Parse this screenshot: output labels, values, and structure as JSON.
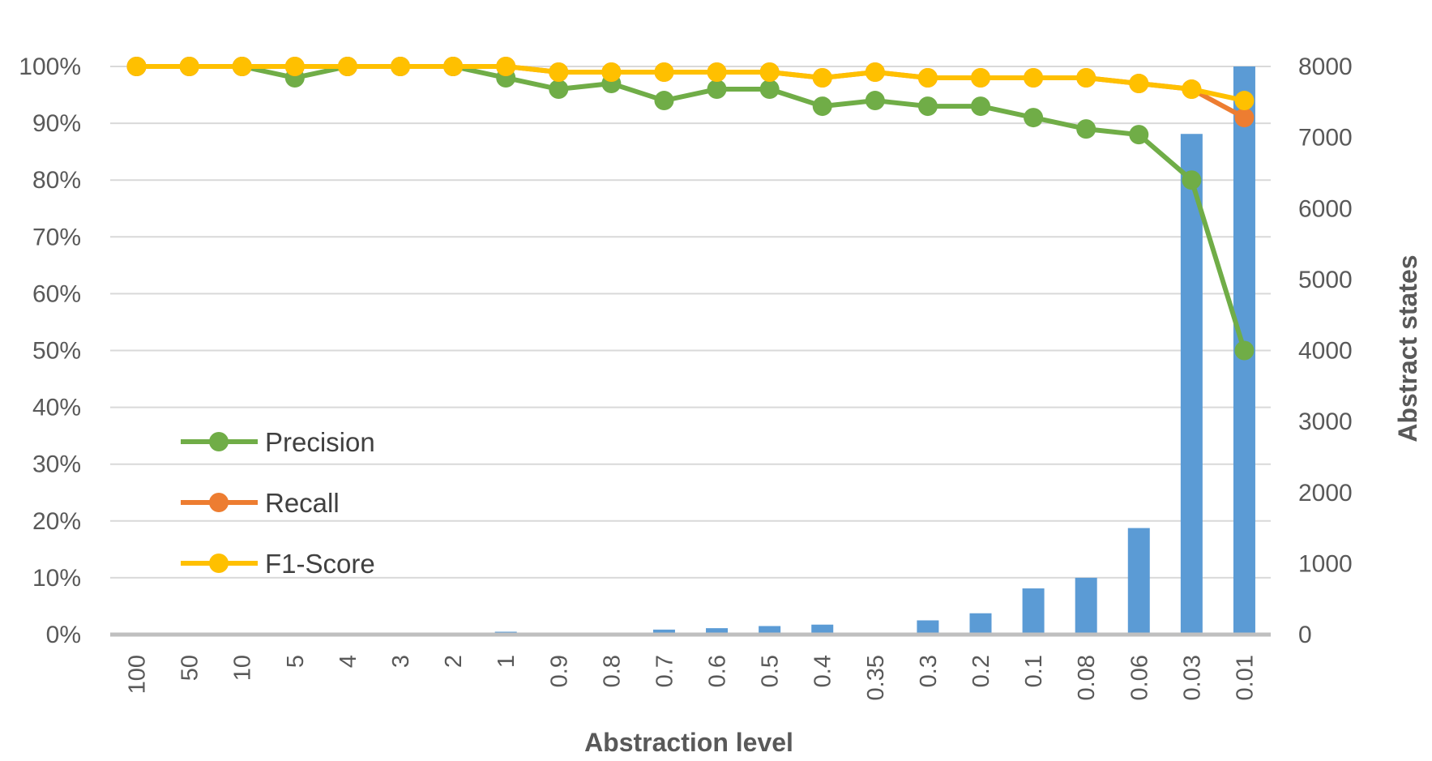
{
  "chart_data": {
    "type": "bar+line",
    "title": "",
    "xlabel": "Abstraction level",
    "ylabel_left": "",
    "ylabel_right": "Abstract states",
    "categories": [
      "100",
      "50",
      "10",
      "5",
      "4",
      "3",
      "2",
      "1",
      "0.9",
      "0.8",
      "0.7",
      "0.6",
      "0.5",
      "0.4",
      "0.35",
      "0.3",
      "0.2",
      "0.1",
      "0.08",
      "0.06",
      "0.03",
      "0.01"
    ],
    "y_left": {
      "min": 0,
      "max": 100,
      "step": 10,
      "unit": "%",
      "ticks": [
        "0%",
        "10%",
        "20%",
        "30%",
        "40%",
        "50%",
        "60%",
        "70%",
        "80%",
        "90%",
        "100%"
      ]
    },
    "y_right": {
      "min": 0,
      "max": 8000,
      "step": 1000,
      "ticks": [
        "0",
        "1000",
        "2000",
        "3000",
        "4000",
        "5000",
        "6000",
        "7000",
        "8000"
      ]
    },
    "grid": true,
    "legend_placement": "left",
    "bars": {
      "axis": "right",
      "color": "#5b9bd5",
      "values": [
        0,
        0,
        0,
        0,
        0,
        0,
        0,
        40,
        0,
        0,
        70,
        90,
        120,
        140,
        15,
        200,
        300,
        650,
        800,
        1500,
        7050,
        8000
      ]
    },
    "series": [
      {
        "name": "Precision",
        "color": "#70ad47",
        "axis": "left",
        "values": [
          100,
          100,
          100,
          98,
          100,
          100,
          100,
          98,
          96,
          97,
          94,
          96,
          96,
          93,
          94,
          93,
          93,
          91,
          89,
          88,
          80,
          50
        ]
      },
      {
        "name": "Recall",
        "color": "#ed7d31",
        "axis": "left",
        "values": [
          100,
          100,
          100,
          100,
          100,
          100,
          100,
          100,
          99,
          99,
          99,
          99,
          99,
          98,
          99,
          98,
          98,
          98,
          98,
          97,
          96,
          91
        ]
      },
      {
        "name": "F1-Score",
        "color": "#ffc000",
        "axis": "left",
        "values": [
          100,
          100,
          100,
          100,
          100,
          100,
          100,
          100,
          99,
          99,
          99,
          99,
          99,
          98,
          99,
          98,
          98,
          98,
          98,
          97,
          96,
          94
        ]
      }
    ]
  }
}
